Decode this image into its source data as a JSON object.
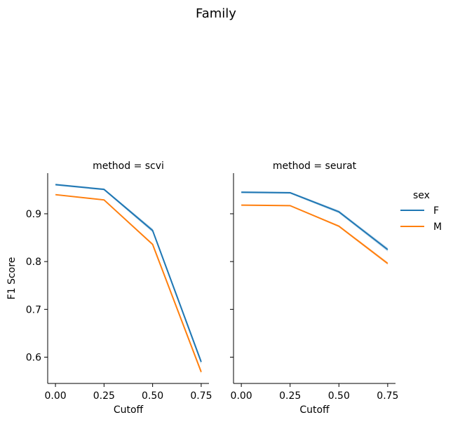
{
  "chart_data": {
    "type": "line",
    "title": "Family",
    "xlabel": "Cutoff",
    "ylabel": "F1 Score",
    "x": [
      0.0,
      0.25,
      0.5,
      0.75
    ],
    "xticks": [
      "0.00",
      "0.25",
      "0.50",
      "0.75"
    ],
    "xlim": [
      -0.04,
      0.79
    ],
    "yticks": [
      "0.6",
      "0.7",
      "0.8",
      "0.9"
    ],
    "ylim": [
      0.545,
      0.985
    ],
    "legend": {
      "title": "sex",
      "placement": "right",
      "entries": [
        {
          "label": "F",
          "color": "#1f77b4"
        },
        {
          "label": "M",
          "color": "#ff7f0e"
        }
      ]
    },
    "panels": [
      {
        "title": "method = scvi",
        "series": [
          {
            "name": "F",
            "color": "#1f77b4",
            "values": [
              0.961,
              0.951,
              0.865,
              0.59
            ],
            "ci": [
              0.002,
              0.002,
              0.004,
              0.005
            ]
          },
          {
            "name": "M",
            "color": "#ff7f0e",
            "values": [
              0.94,
              0.929,
              0.836,
              0.569
            ],
            "ci": [
              0.001,
              0.001,
              0.002,
              0.004
            ]
          }
        ]
      },
      {
        "title": "method = seurat",
        "series": [
          {
            "name": "F",
            "color": "#1f77b4",
            "values": [
              0.945,
              0.944,
              0.904,
              0.825
            ],
            "ci": [
              0.002,
              0.002,
              0.003,
              0.004
            ]
          },
          {
            "name": "M",
            "color": "#ff7f0e",
            "values": [
              0.918,
              0.917,
              0.874,
              0.796
            ],
            "ci": [
              0.001,
              0.001,
              0.002,
              0.003
            ]
          }
        ]
      }
    ]
  }
}
